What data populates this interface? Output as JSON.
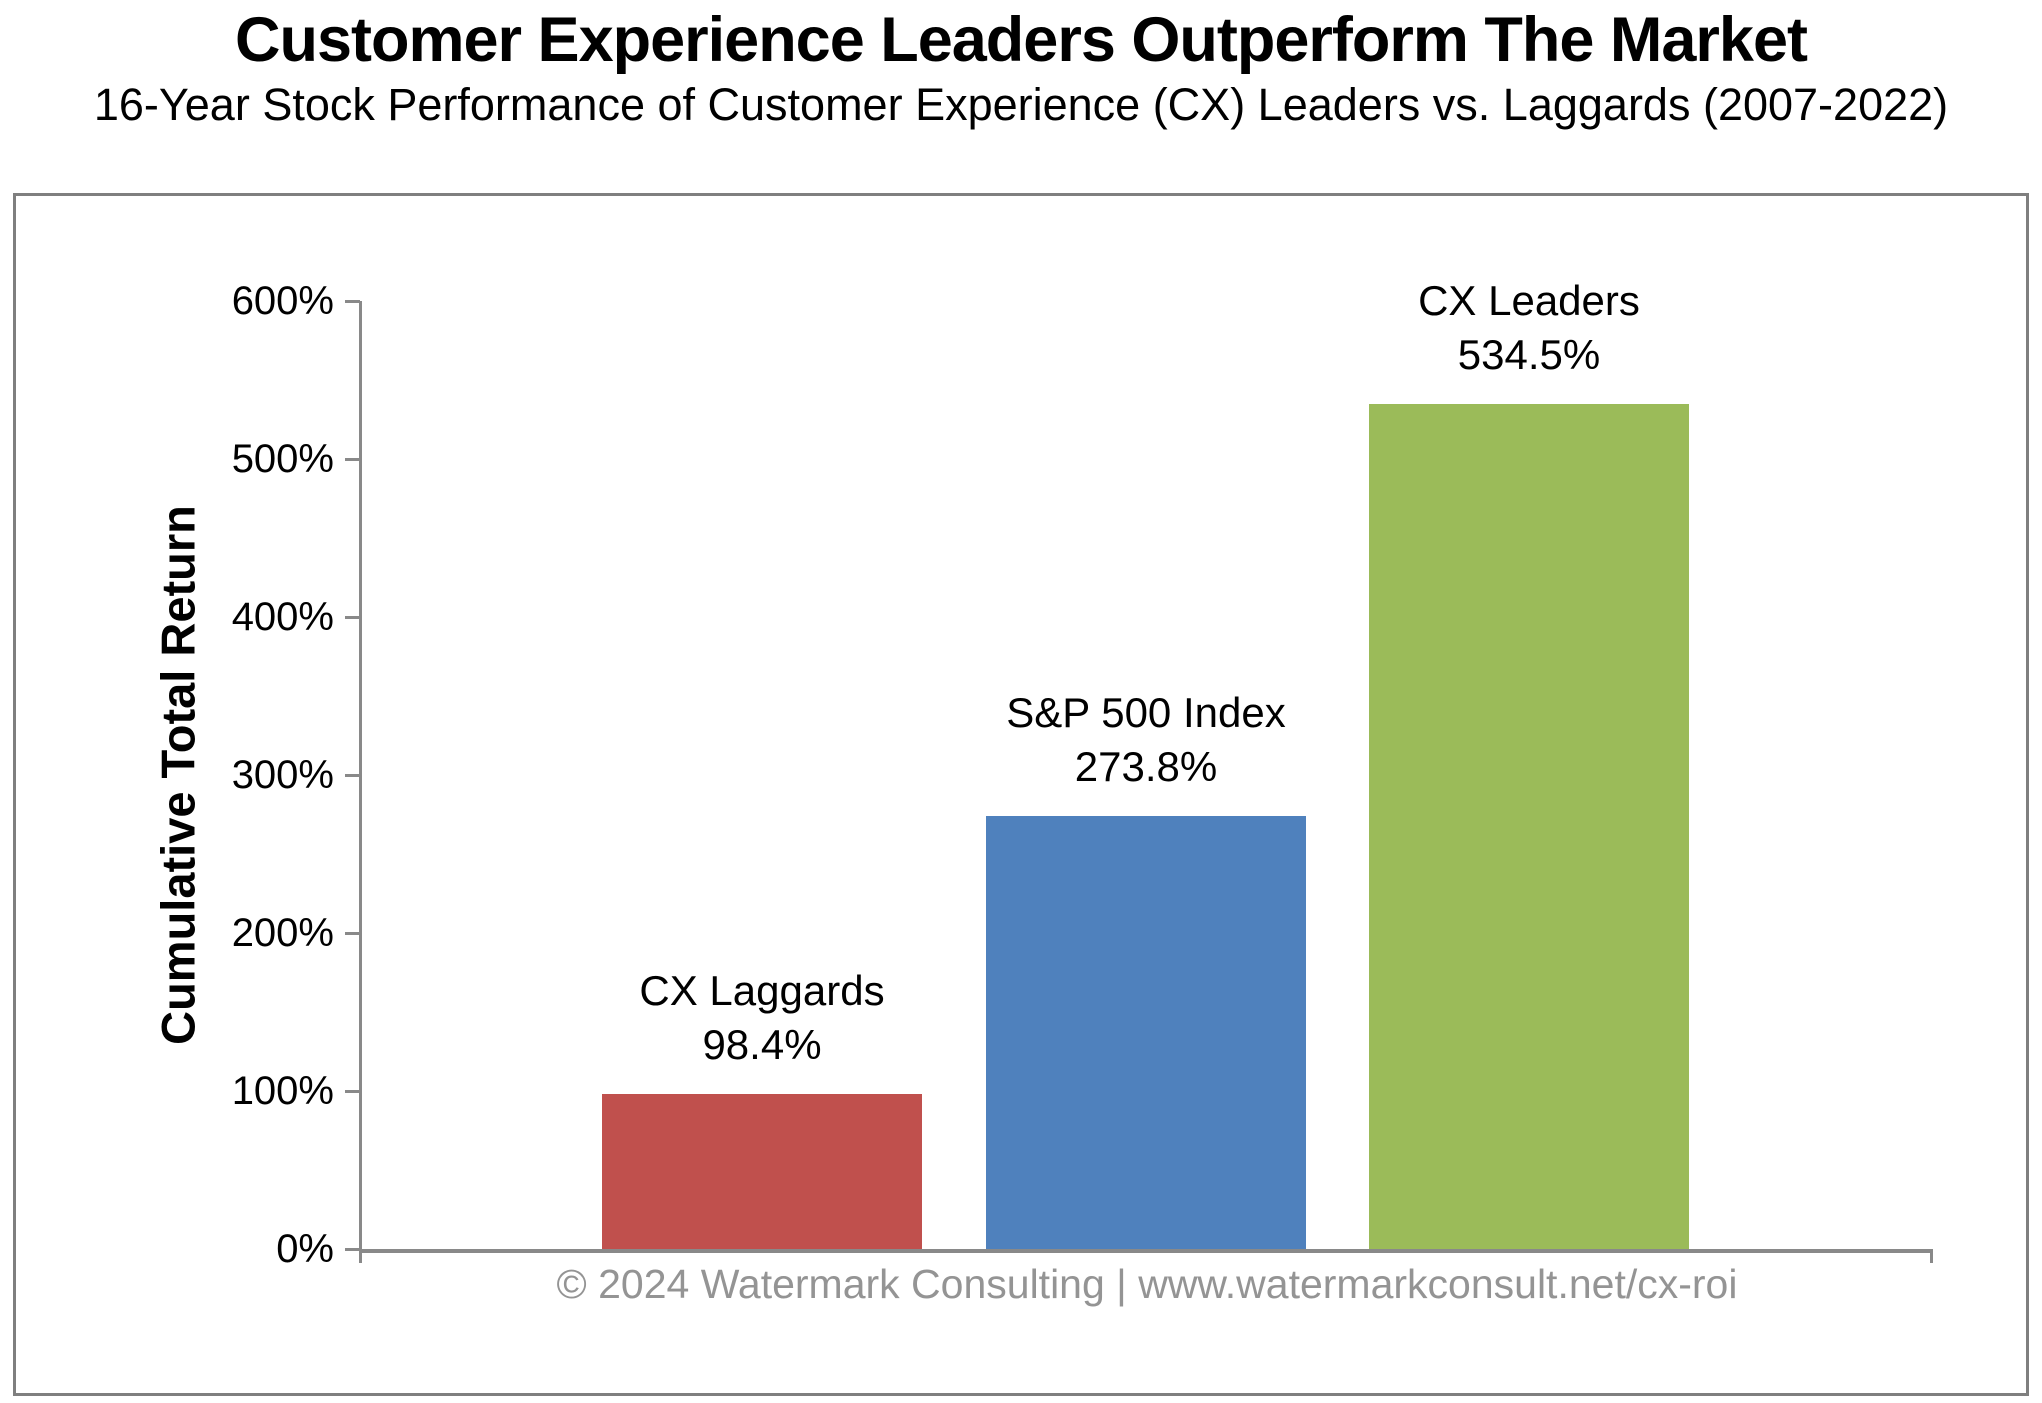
{
  "header": {
    "title": "Customer Experience Leaders Outperform The Market",
    "subtitle": "16-Year Stock Performance of Customer Experience (CX) Leaders vs. Laggards (2007-2022)"
  },
  "chart_data": {
    "type": "bar",
    "title": "Customer Experience Leaders Outperform The Market",
    "subtitle": "16-Year Stock Performance of Customer Experience (CX) Leaders vs. Laggards (2007-2022)",
    "categories": [
      "CX Laggards",
      "S&P 500 Index",
      "CX Leaders"
    ],
    "values": [
      98.4,
      273.8,
      534.5
    ],
    "value_labels": [
      "98.4%",
      "273.8%",
      "534.5%"
    ],
    "bar_colors": [
      "#C0504D",
      "#4F81BD",
      "#9BBB59"
    ],
    "xlabel": "",
    "ylabel": "Cumulative Total Return",
    "ylim": [
      0,
      600
    ],
    "ytick_step": 100,
    "ytick_labels": [
      "0%",
      "100%",
      "200%",
      "300%",
      "400%",
      "500%",
      "600%"
    ],
    "grid": false,
    "legend_position": "none",
    "axis_color": "#898989",
    "frame_border_color": "#7f7f7f"
  },
  "footer": {
    "credit": "© 2024 Watermark Consulting | www.watermarkconsult.net/cx-roi"
  }
}
